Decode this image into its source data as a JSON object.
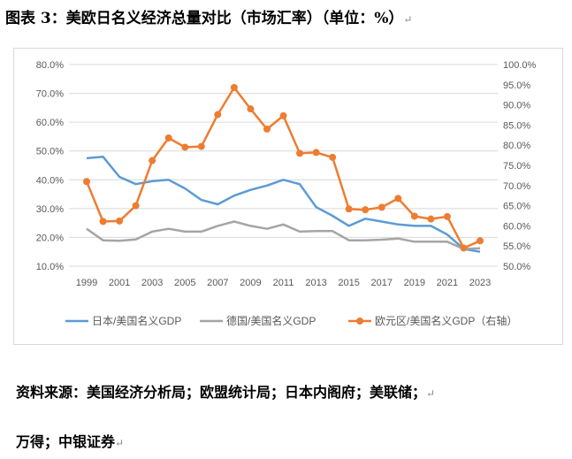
{
  "title": "图表 3：美欧日名义经济总量对比（市场汇率）（单位：%）",
  "source_line1": "资料来源：美国经济分析局；欧盟统计局；日本内阁府；美联储；",
  "source_line2": "万得；中银证券",
  "colors": {
    "japan": "#5b9bd5",
    "germany": "#a5a5a5",
    "euro": "#ed7d31",
    "grid": "#d9d9d9",
    "axis_text": "#595959"
  },
  "chart_data": {
    "type": "line",
    "x": [
      1999,
      2000,
      2001,
      2002,
      2003,
      2004,
      2005,
      2006,
      2007,
      2008,
      2009,
      2010,
      2011,
      2012,
      2013,
      2014,
      2015,
      2016,
      2017,
      2018,
      2019,
      2020,
      2021,
      2022,
      2023
    ],
    "x_tick_labels": [
      "1999",
      "2001",
      "2003",
      "2005",
      "2007",
      "2009",
      "2011",
      "2013",
      "2015",
      "2017",
      "2019",
      "2021",
      "2023"
    ],
    "y_left": {
      "ylim": [
        0.1,
        0.8
      ],
      "tick_labels": [
        "80.0%",
        "70.0%",
        "60.0%",
        "50.0%",
        "40.0%",
        "30.0%",
        "20.0%",
        "10.0%"
      ]
    },
    "y_right": {
      "ylim": [
        0.5,
        1.0
      ],
      "tick_labels": [
        "100.0%",
        "95.0%",
        "90.0%",
        "85.0%",
        "80.0%",
        "75.0%",
        "70.0%",
        "65.0%",
        "60.0%",
        "55.0%",
        "50.0%"
      ]
    },
    "grid": true,
    "legend_position": "bottom",
    "series": [
      {
        "name": "日本/美国名义GDP",
        "axis": "left",
        "marker": false,
        "values": [
          0.475,
          0.48,
          0.41,
          0.385,
          0.395,
          0.4,
          0.37,
          0.33,
          0.315,
          0.345,
          0.365,
          0.38,
          0.4,
          0.385,
          0.305,
          0.275,
          0.24,
          0.265,
          0.255,
          0.245,
          0.24,
          0.24,
          0.21,
          0.16,
          0.15
        ]
      },
      {
        "name": "德国/美国名义GDP",
        "axis": "left",
        "marker": false,
        "values": [
          0.23,
          0.19,
          0.188,
          0.193,
          0.22,
          0.23,
          0.22,
          0.22,
          0.24,
          0.255,
          0.24,
          0.23,
          0.245,
          0.22,
          0.222,
          0.222,
          0.19,
          0.19,
          0.192,
          0.196,
          0.185,
          0.185,
          0.185,
          0.16,
          0.162
        ]
      },
      {
        "name": "欧元区/美国名义GDP（右轴）",
        "axis": "right",
        "marker": true,
        "values": [
          0.71,
          0.611,
          0.612,
          0.65,
          0.762,
          0.818,
          0.795,
          0.797,
          0.876,
          0.943,
          0.89,
          0.84,
          0.873,
          0.78,
          0.782,
          0.77,
          0.642,
          0.64,
          0.646,
          0.668,
          0.624,
          0.617,
          0.623,
          0.545,
          0.563
        ]
      }
    ]
  }
}
